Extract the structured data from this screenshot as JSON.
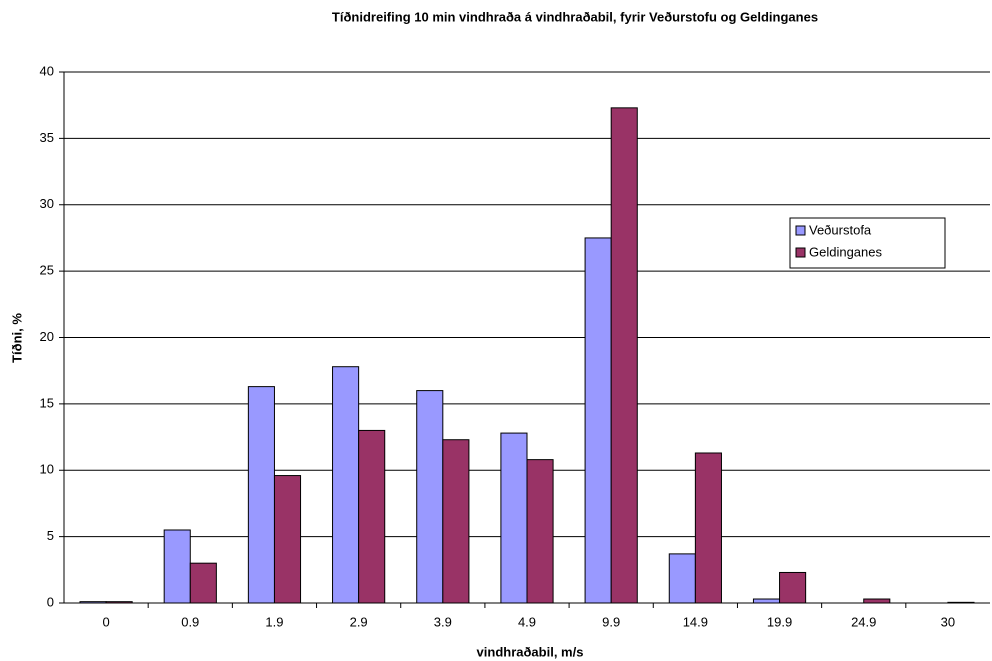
{
  "chart_data": {
    "type": "bar",
    "title": "Tíðnidreifing  10 min vindhraða á vindhraðabil, fyrir Veðurstofu og Geldinganes",
    "xlabel": "vindhraðabil, m/s",
    "ylabel": "Tíðni, %",
    "categories": [
      "0",
      "0.9",
      "1.9",
      "2.9",
      "3.9",
      "4.9",
      "9.9",
      "14.9",
      "19.9",
      "24.9",
      "30"
    ],
    "series": [
      {
        "name": "Veðurstofa",
        "color": "#9999ff",
        "values": [
          0.1,
          5.5,
          16.3,
          17.8,
          16.0,
          12.8,
          27.5,
          3.7,
          0.3,
          0,
          0
        ]
      },
      {
        "name": "Geldinganes",
        "color": "#993366",
        "values": [
          0.1,
          3.0,
          9.6,
          13.0,
          12.3,
          10.8,
          37.3,
          11.3,
          2.3,
          0.3,
          0.05
        ]
      }
    ],
    "ylim": [
      0,
      40
    ],
    "yticks": [
      0,
      5,
      10,
      15,
      20,
      25,
      30,
      35,
      40
    ],
    "grid": true,
    "legend": "right"
  }
}
